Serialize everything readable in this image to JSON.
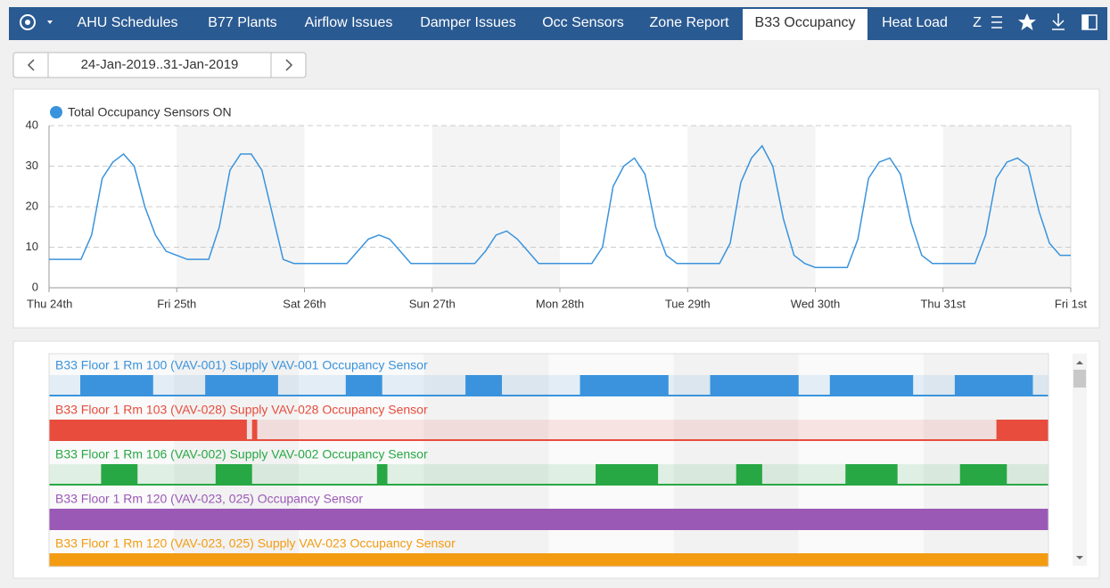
{
  "tabs": [
    "AHU Schedules",
    "B77 Plants",
    "Airflow Issues",
    "Damper Issues",
    "Occ Sensors",
    "Zone Report",
    "B33 Occupancy",
    "Heat Load",
    "Z"
  ],
  "active_tab": 6,
  "date_range": "24-Jan-2019..31-Jan-2019",
  "chart_data": {
    "type": "line",
    "x": [
      0,
      2,
      4,
      6,
      8,
      10,
      12,
      14,
      16,
      18,
      20,
      22,
      24,
      26,
      28,
      30,
      32,
      34,
      36,
      38,
      40,
      42,
      44,
      46,
      48,
      50,
      52,
      54,
      56,
      58,
      60,
      62,
      64,
      66,
      68,
      70,
      72,
      74,
      76,
      78,
      80,
      82,
      84,
      86,
      88,
      90,
      92,
      94,
      96,
      98,
      100,
      102,
      104,
      106,
      108,
      110,
      112,
      114,
      116,
      118,
      120,
      122,
      124,
      126,
      128,
      130,
      132,
      134,
      136,
      138,
      140,
      142,
      144,
      146,
      148,
      150,
      152,
      154,
      156,
      158,
      160,
      162,
      164,
      166,
      168,
      170,
      172,
      174,
      176,
      178,
      180,
      182,
      184,
      186,
      188,
      190,
      192
    ],
    "series": [
      {
        "name": "Total Occupancy Sensors ON",
        "color": "#3a93dc",
        "values": [
          7,
          7,
          7,
          7,
          13,
          27,
          31,
          33,
          30,
          20,
          13,
          9,
          8,
          7,
          7,
          7,
          15,
          29,
          33,
          33,
          29,
          18,
          7,
          6,
          6,
          6,
          6,
          6,
          6,
          9,
          12,
          13,
          12,
          9,
          6,
          6,
          6,
          6,
          6,
          6,
          6,
          9,
          13,
          14,
          12,
          9,
          6,
          6,
          6,
          6,
          6,
          6,
          10,
          25,
          30,
          32,
          28,
          15,
          8,
          6,
          6,
          6,
          6,
          6,
          11,
          26,
          32,
          35,
          30,
          17,
          8,
          6,
          5,
          5,
          5,
          5,
          12,
          27,
          31,
          32,
          28,
          16,
          8,
          6,
          6,
          6,
          6,
          6,
          13,
          27,
          31,
          32,
          30,
          19,
          11,
          8,
          8
        ]
      }
    ],
    "xlim": [
      0,
      192
    ],
    "xticks": [
      {
        "value": 0,
        "label": "Thu 24th"
      },
      {
        "value": 24,
        "label": "Fri 25th"
      },
      {
        "value": 48,
        "label": "Sat 26th"
      },
      {
        "value": 72,
        "label": "Sun 27th"
      },
      {
        "value": 96,
        "label": "Mon 28th"
      },
      {
        "value": 120,
        "label": "Tue 29th"
      },
      {
        "value": 144,
        "label": "Wed 30th"
      },
      {
        "value": 168,
        "label": "Thu 31st"
      },
      {
        "value": 192,
        "label": "Fri 1st"
      }
    ],
    "ylim": [
      0,
      40
    ],
    "yticks": [
      0,
      10,
      20,
      30,
      40
    ],
    "grid": true,
    "legend": "top-left"
  },
  "timeline": {
    "rows": [
      {
        "label": "B33 Floor 1 Rm 100 (VAV-001) Supply VAV-001 Occupancy Sensor",
        "color": "#3a93dc",
        "on": [
          [
            6,
            20
          ],
          [
            30,
            44
          ],
          [
            57,
            64
          ],
          [
            80,
            87
          ],
          [
            102,
            119
          ],
          [
            127,
            144
          ],
          [
            150,
            166
          ],
          [
            174,
            189
          ]
        ]
      },
      {
        "label": "B33 Floor 1 Rm 103 (VAV-028) Supply VAV-028 Occupancy Sensor",
        "color": "#e74c3c",
        "on": [
          [
            0,
            38
          ],
          [
            39,
            40
          ],
          [
            182,
            192
          ]
        ]
      },
      {
        "label": "B33 Floor 1 Rm 106 (VAV-002) Supply VAV-002 Occupancy Sensor",
        "color": "#27a844",
        "on": [
          [
            10,
            17
          ],
          [
            32,
            39
          ],
          [
            63,
            65
          ],
          [
            105,
            117
          ],
          [
            132,
            137
          ],
          [
            153,
            163
          ],
          [
            175,
            184
          ]
        ]
      },
      {
        "label": "B33 Floor 1 Rm 120 (VAV-023, 025) Occupancy Sensor",
        "color": "#9b59b6",
        "on": [
          [
            0,
            192
          ]
        ]
      },
      {
        "label": "B33 Floor 1 Rm 120 (VAV-023, 025) Supply VAV-023 Occupancy Sensor",
        "color": "#f39c12",
        "on": [
          [
            0,
            192
          ]
        ]
      }
    ]
  }
}
